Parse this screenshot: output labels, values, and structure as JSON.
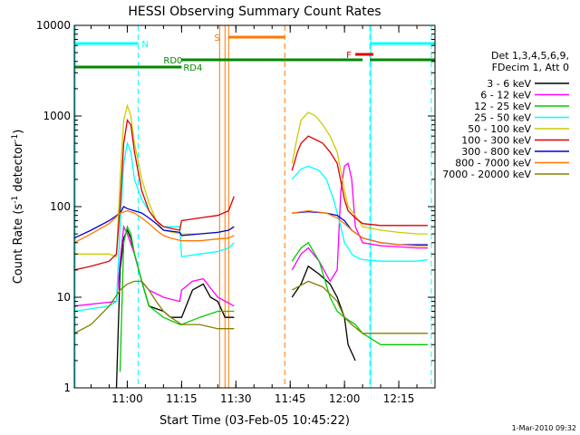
{
  "chart_data": {
    "type": "line",
    "title": "HESSI Observing Summary Count Rates",
    "xlabel": "Start Time (03-Feb-05 10:45:22)",
    "ylabel_main": "Count Rate (s",
    "ylabel_sup1": "-1",
    "ylabel_mid": " detector",
    "ylabel_sup2": "-1",
    "ylabel_end": ")",
    "footer": "1-Mar-2010 09:32",
    "y_scale": "log",
    "y_range": [
      1,
      10000
    ],
    "x_range": [
      "10:45:22",
      "12:25:00"
    ],
    "x_ticks": [
      "11:00",
      "11:15",
      "11:30",
      "11:45",
      "12:00",
      "12:15"
    ],
    "y_ticks": [
      "1",
      "10",
      "100",
      "1000",
      "10000"
    ],
    "legend_title_1": "Det 1,3,4,5,6,9,",
    "legend_title_2": "FDecim 1, Att 0",
    "legend_position": "right",
    "series": [
      {
        "name": "3 - 6 keV",
        "color": "#000000",
        "x": [
          "10:45:22",
          "10:57:00",
          "10:58:00",
          "10:59:00",
          "11:00:00",
          "11:01:00",
          "11:02:00",
          "11:04:00",
          "11:06:00",
          "11:10:00",
          "11:12:00",
          "11:14:30",
          "11:15:00",
          "11:18:00",
          "11:21:00",
          "11:23:00",
          "11:25:00",
          "11:27:00",
          "11:28:30",
          "11:29:30",
          "11:44:30",
          "11:45:30",
          "11:48:00",
          "11:50:00",
          "11:53:00",
          "11:56:00",
          "11:58:00",
          "12:00:00",
          "12:01:00",
          "12:03:00",
          "12:05:00"
        ],
        "y": [
          null,
          1,
          20,
          45,
          55,
          45,
          30,
          15,
          8,
          7,
          6,
          6,
          6,
          12,
          14,
          10,
          9,
          6,
          6,
          6,
          null,
          10,
          14,
          22,
          18,
          14,
          10,
          6,
          3,
          2,
          null
        ]
      },
      {
        "name": "6 - 12 keV",
        "color": "#ff00ff",
        "x": [
          "10:45:22",
          "10:57:00",
          "10:58:00",
          "10:59:00",
          "11:00:00",
          "11:02:00",
          "11:04:00",
          "11:06:00",
          "11:10:00",
          "11:14:30",
          "11:15:00",
          "11:18:00",
          "11:21:00",
          "11:25:00",
          "11:29:30",
          "11:44:30",
          "11:45:30",
          "11:48:00",
          "11:50:00",
          "11:53:00",
          "11:56:00",
          "11:58:00",
          "11:59:00",
          "12:00:00",
          "12:01:00",
          "12:02:00",
          "12:03:00",
          "12:05:00",
          "12:10:00",
          "12:15:00",
          "12:20:00",
          "12:23:00"
        ],
        "y": [
          8,
          9,
          25,
          60,
          50,
          30,
          15,
          12,
          10,
          9,
          12,
          15,
          16,
          10,
          8,
          null,
          20,
          30,
          35,
          25,
          15,
          20,
          150,
          280,
          300,
          200,
          60,
          40,
          37,
          36,
          35,
          35
        ]
      },
      {
        "name": "12 - 25 keV",
        "color": "#00cc00",
        "x": [
          "10:58:00",
          "10:59:00",
          "11:00:00",
          "11:01:00",
          "11:02:00",
          "11:04:00",
          "11:06:00",
          "11:10:00",
          "11:14:30",
          "11:15:00",
          "11:20:00",
          "11:25:00",
          "11:29:30",
          "11:44:30",
          "11:45:30",
          "11:48:00",
          "11:50:00",
          "11:53:00",
          "11:56:00",
          "11:58:00",
          "12:00:00",
          "12:03:00",
          "12:05:00",
          "12:10:00",
          "12:15:00",
          "12:20:00",
          "12:23:00"
        ],
        "y": [
          1.5,
          40,
          60,
          50,
          30,
          15,
          8,
          6,
          5,
          5,
          6,
          7,
          7,
          null,
          25,
          35,
          40,
          25,
          10,
          7,
          6,
          5,
          4,
          3,
          3,
          3,
          3
        ]
      },
      {
        "name": "25 - 50 keV",
        "color": "#00ffff",
        "x": [
          "10:45:22",
          "10:55:00",
          "10:57:00",
          "10:58:00",
          "10:59:00",
          "11:00:00",
          "11:01:00",
          "11:02:00",
          "11:04:00",
          "11:06:00",
          "11:08:00",
          "11:10:00",
          "11:14:30",
          "11:15:00",
          "11:20:00",
          "11:25:00",
          "11:28:00",
          "11:29:30",
          "11:44:30",
          "11:45:30",
          "11:48:00",
          "11:50:00",
          "11:53:00",
          "11:55:00",
          "11:57:00",
          "11:59:00",
          "12:00:00",
          "12:01:00",
          "12:02:00",
          "12:03:00",
          "12:05:00",
          "12:10:00",
          "12:15:00",
          "12:20:00",
          "12:23:00"
        ],
        "y": [
          7,
          8,
          9,
          60,
          300,
          500,
          400,
          200,
          120,
          90,
          70,
          60,
          60,
          28,
          30,
          32,
          35,
          40,
          null,
          200,
          260,
          280,
          250,
          200,
          120,
          60,
          40,
          35,
          30,
          28,
          26,
          25,
          25,
          25,
          26
        ]
      },
      {
        "name": "50 - 100 keV",
        "color": "#cccc00",
        "x": [
          "10:45:22",
          "10:55:00",
          "10:57:00",
          "10:58:00",
          "10:59:00",
          "11:00:00",
          "11:01:00",
          "11:02:00",
          "11:04:00",
          "11:06:00",
          "11:08:00",
          "11:10:00",
          "11:14:30",
          "11:15:00",
          "11:20:00",
          "11:25:00",
          "11:28:00",
          "11:29:30",
          "11:44:30",
          "11:45:30",
          "11:47:00",
          "11:48:00",
          "11:50:00",
          "11:52:00",
          "11:54:00",
          "11:56:00",
          "11:58:00",
          "12:00:00",
          "12:01:00",
          "12:03:00",
          "12:05:00",
          "12:10:00",
          "12:15:00",
          "12:20:00",
          "12:23:00"
        ],
        "y": [
          30,
          30,
          28,
          200,
          900,
          1300,
          1000,
          500,
          200,
          110,
          70,
          55,
          50,
          50,
          50,
          52,
          55,
          60,
          null,
          300,
          600,
          900,
          1100,
          1000,
          800,
          600,
          400,
          150,
          100,
          80,
          60,
          55,
          52,
          50,
          50
        ]
      },
      {
        "name": "100 - 300 keV",
        "color": "#dd0000",
        "x": [
          "10:45:22",
          "10:50:00",
          "10:55:00",
          "10:57:00",
          "10:58:00",
          "10:59:00",
          "11:00:00",
          "11:01:00",
          "11:02:00",
          "11:04:00",
          "11:06:00",
          "11:08:00",
          "11:10:00",
          "11:14:30",
          "11:15:00",
          "11:20:00",
          "11:25:00",
          "11:28:00",
          "11:29:30",
          "11:44:30",
          "11:45:30",
          "11:47:00",
          "11:48:00",
          "11:50:00",
          "11:52:00",
          "11:54:00",
          "11:56:00",
          "11:58:00",
          "12:00:00",
          "12:01:00",
          "12:03:00",
          "12:05:00",
          "12:10:00",
          "12:15:00",
          "12:20:00",
          "12:23:00"
        ],
        "y": [
          20,
          22,
          25,
          30,
          100,
          500,
          900,
          800,
          400,
          150,
          90,
          70,
          60,
          55,
          70,
          75,
          80,
          90,
          130,
          null,
          250,
          400,
          500,
          600,
          550,
          500,
          400,
          300,
          120,
          90,
          75,
          65,
          62,
          62,
          62,
          62
        ]
      },
      {
        "name": "300 - 800 keV",
        "color": "#0000dd",
        "x": [
          "10:45:22",
          "10:50:00",
          "10:55:00",
          "10:58:00",
          "10:59:00",
          "11:00:00",
          "11:02:00",
          "11:04:00",
          "11:06:00",
          "11:08:00",
          "11:10:00",
          "11:14:30",
          "11:15:00",
          "11:20:00",
          "11:25:00",
          "11:28:00",
          "11:29:30",
          "11:44:30",
          "11:45:30",
          "11:50:00",
          "11:55:00",
          "11:58:00",
          "12:00:00",
          "12:02:00",
          "12:05:00",
          "12:10:00",
          "12:15:00",
          "12:20:00",
          "12:23:00"
        ],
        "y": [
          45,
          55,
          70,
          85,
          100,
          95,
          90,
          85,
          75,
          65,
          55,
          52,
          48,
          50,
          52,
          55,
          60,
          null,
          85,
          88,
          85,
          80,
          70,
          55,
          45,
          40,
          38,
          38,
          38
        ]
      },
      {
        "name": "800 - 7000 keV",
        "color": "#ff7700",
        "x": [
          "10:45:22",
          "10:50:00",
          "10:55:00",
          "10:58:00",
          "11:00:00",
          "11:02:00",
          "11:04:00",
          "11:06:00",
          "11:08:00",
          "11:10:00",
          "11:12:00",
          "11:15:00",
          "11:20:00",
          "11:25:00",
          "11:28:00",
          "11:29:30",
          "11:44:30",
          "11:45:30",
          "11:50:00",
          "11:55:00",
          "11:58:00",
          "12:00:00",
          "12:02:00",
          "12:05:00",
          "12:10:00",
          "12:15:00",
          "12:20:00",
          "12:23:00"
        ],
        "y": [
          40,
          50,
          65,
          85,
          90,
          85,
          75,
          65,
          55,
          48,
          45,
          42,
          42,
          44,
          45,
          48,
          null,
          85,
          90,
          85,
          75,
          65,
          55,
          45,
          40,
          38,
          37,
          37
        ]
      },
      {
        "name": "7000 - 20000 keV",
        "color": "#808000",
        "x": [
          "10:45:22",
          "10:50:00",
          "10:55:00",
          "10:58:00",
          "11:00:00",
          "11:02:00",
          "11:04:00",
          "11:06:00",
          "11:08:00",
          "11:10:00",
          "11:12:00",
          "11:15:00",
          "11:20:00",
          "11:25:00",
          "11:29:30",
          "11:44:30",
          "11:45:30",
          "11:50:00",
          "11:54:00",
          "11:58:00",
          "12:00:00",
          "12:02:00",
          "12:05:00",
          "12:10:00",
          "12:15:00",
          "12:20:00",
          "12:23:00"
        ],
        "y": [
          4,
          5,
          8,
          12,
          14,
          15,
          15,
          12,
          9,
          7,
          6,
          5,
          5,
          4.5,
          4.5,
          null,
          12,
          15,
          13,
          9,
          6,
          5,
          4,
          4,
          4,
          4,
          4
        ]
      }
    ],
    "annotations": [
      {
        "label": "N",
        "color": "#00ffff"
      },
      {
        "label": "S",
        "color": "#ff7700"
      },
      {
        "label": "F",
        "color": "#dd0000"
      },
      {
        "label": "RD0",
        "color": "#008800"
      },
      {
        "label": "RD4",
        "color": "#008800"
      }
    ],
    "flags": {
      "night_bars": [
        [
          "10:45:22",
          "11:03:00"
        ],
        [
          "12:07:00",
          "12:25:00"
        ]
      ],
      "night_dashes": [
        "11:03:00",
        "12:07:00",
        "12:24:00"
      ],
      "saa_bar": [
        "11:28:00",
        "11:43:30"
      ],
      "saa_lines": [
        "11:25:30",
        "11:27:00",
        "11:28:00"
      ],
      "saa_dash": "11:43:30",
      "flare_bar": [
        "12:03:00",
        "12:08:00"
      ],
      "rd0_bars": [
        [
          "11:15:00",
          "11:43:30"
        ],
        [
          "11:43:30",
          "12:05:00"
        ],
        [
          "12:07:00",
          "12:25:00"
        ]
      ],
      "rd4_bar": [
        "10:45:22",
        "11:15:00"
      ]
    }
  }
}
